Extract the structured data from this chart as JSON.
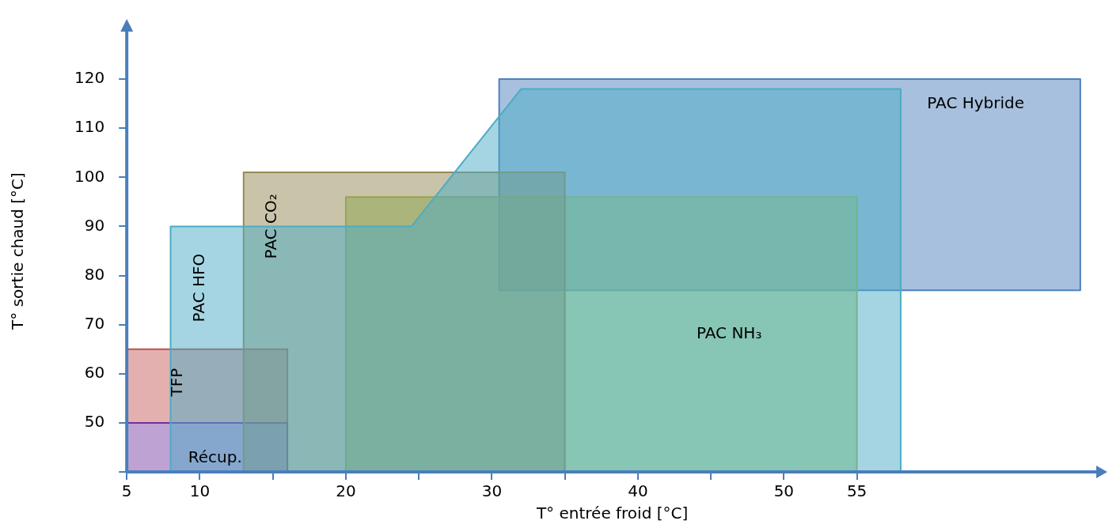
{
  "chart_data": {
    "type": "area",
    "xlabel": "T° entrée froid [°C]",
    "ylabel": "T° sortie chaud [°C]",
    "xlim": [
      5,
      71.5
    ],
    "ylim": [
      40,
      130
    ],
    "xticks": [
      5,
      10,
      {
        "value": 15,
        "label": null
      },
      20,
      {
        "value": 25,
        "label": null
      },
      30,
      {
        "value": 35,
        "label": null
      },
      40,
      {
        "value": 45,
        "label": null
      },
      50,
      55
    ],
    "yticks": [
      {
        "value": 40,
        "label": null
      },
      50,
      60,
      70,
      80,
      90,
      100,
      110,
      120
    ],
    "grid": false,
    "legend": false,
    "series": [
      {
        "name": "PAC HFO",
        "color": "#4bacc6",
        "x": [
          8,
          8,
          24.5,
          32,
          58,
          58,
          8
        ],
        "values": [
          40,
          90,
          90,
          118,
          118,
          40,
          40
        ]
      },
      {
        "name": "PAC CO₂",
        "color": "#948a54",
        "x": [
          13,
          13,
          35,
          35,
          13
        ],
        "values": [
          40,
          101,
          101,
          40,
          40
        ]
      },
      {
        "name": "PAC NH₃",
        "color": "#9bbb59",
        "x": [
          20,
          20,
          55,
          55,
          20
        ],
        "values": [
          40,
          96,
          96,
          40,
          40
        ]
      },
      {
        "name": "PAC Hybride",
        "color": "#4f81bd",
        "x": [
          30.5,
          30.5,
          70.3,
          70.3,
          30.5
        ],
        "values": [
          77,
          120,
          120,
          77,
          77
        ]
      },
      {
        "name": "Récup.",
        "color": "#7030a0",
        "x": [
          5,
          5,
          16,
          16,
          5
        ],
        "values": [
          40,
          50,
          50,
          40,
          40
        ]
      },
      {
        "name": "TFP",
        "color": "#c0504d",
        "x": [
          5,
          5,
          16,
          16,
          5
        ],
        "values": [
          50,
          65,
          65,
          50,
          50
        ]
      }
    ]
  }
}
